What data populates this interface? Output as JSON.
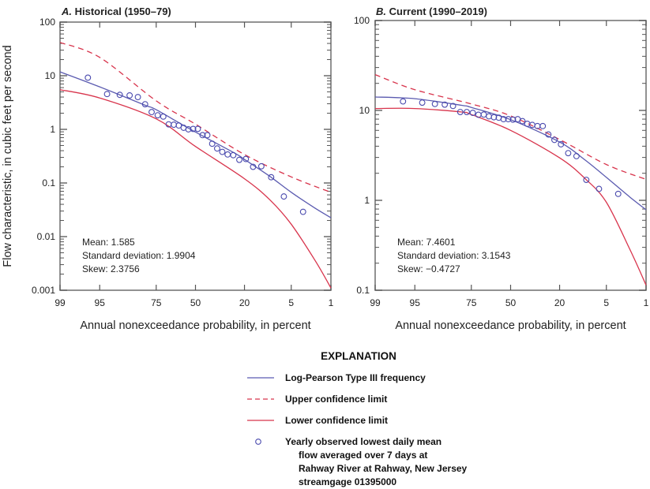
{
  "y_axis_label": "Flow characteristic, in cubic feet per second",
  "colors": {
    "frequency": "#5b5bb0",
    "confidence": "#d8344c",
    "observed": "#4a4aae",
    "axis": "#777777"
  },
  "legend": {
    "title": "EXPLANATION",
    "items": [
      {
        "label": "Log-Pearson Type III frequency",
        "style": "solid-blue-line"
      },
      {
        "label": "Upper confidence limit",
        "style": "dashed-red-line"
      },
      {
        "label": "Lower confidence limit",
        "style": "solid-red-line"
      },
      {
        "label_lines": [
          "Yearly observed lowest daily mean",
          "flow averaged over 7 days at",
          "Rahway River at Rahway, New Jersey",
          "streamgage 01395000"
        ],
        "style": "open-blue-circle"
      }
    ]
  },
  "chart_data": [
    {
      "type": "scatter",
      "panel_letter": "A.",
      "title": "Historical (1950–79)",
      "xlabel": "Annual nonexceedance probability, in percent",
      "x_scale": "normal-probability, reversed",
      "x_ticks": [
        99,
        95,
        75,
        50,
        20,
        5,
        1
      ],
      "x_tick_labels": [
        "99",
        "95",
        "75",
        "50",
        "20",
        "5",
        "1"
      ],
      "y_scale": "log",
      "ylim": [
        0.001,
        100
      ],
      "y_ticks": [
        100,
        10,
        1,
        0.1,
        0.01,
        0.001
      ],
      "y_tick_labels": [
        "100",
        "10",
        "1",
        "0.1",
        "0.01",
        "0.001"
      ],
      "grid": false,
      "stats": [
        "Mean: 1.585",
        "Standard deviation: 1.9904",
        "Skew: 2.3756"
      ],
      "observed": {
        "x": [
          96.77,
          93.55,
          90.32,
          87.1,
          83.87,
          80.65,
          77.42,
          74.19,
          70.97,
          67.74,
          64.52,
          61.29,
          58.06,
          54.84,
          51.61,
          48.39,
          45.16,
          41.94,
          38.71,
          35.48,
          32.26,
          29.03,
          25.81,
          22.58,
          19.35,
          16.13,
          12.9,
          9.68,
          6.45,
          3.23
        ],
        "y": [
          9.2,
          4.56,
          4.4,
          4.3,
          4.0,
          2.94,
          2.1,
          1.83,
          1.73,
          1.24,
          1.22,
          1.18,
          1.07,
          1.0,
          1.02,
          1.02,
          0.78,
          0.78,
          0.54,
          0.44,
          0.38,
          0.34,
          0.33,
          0.27,
          0.28,
          0.2,
          0.205,
          0.128,
          0.056,
          0.029
        ]
      },
      "frequency_curve": {
        "x": [
          99,
          95,
          90,
          80,
          75,
          50,
          25,
          20,
          10,
          5,
          2,
          1
        ],
        "y": [
          11.8,
          6.2,
          4.3,
          2.75,
          2.32,
          0.89,
          0.36,
          0.275,
          0.132,
          0.067,
          0.034,
          0.0225
        ]
      },
      "upper_confidence": {
        "x": [
          99,
          95,
          75,
          50,
          20,
          5,
          1
        ],
        "y": [
          41.7,
          22,
          3.4,
          1.25,
          0.34,
          0.13,
          0.067
        ]
      },
      "lower_confidence": {
        "x": [
          99,
          95,
          75,
          50,
          20,
          10,
          5,
          2,
          1
        ],
        "y": [
          5.5,
          3.85,
          1.57,
          0.48,
          0.12,
          0.048,
          0.017,
          0.0036,
          0.0011
        ]
      }
    },
    {
      "type": "scatter",
      "panel_letter": "B.",
      "title": "Current (1990–2019)",
      "xlabel": "Annual nonexceedance probability, in percent",
      "x_scale": "normal-probability, reversed",
      "x_ticks": [
        99,
        95,
        75,
        50,
        20,
        5,
        1
      ],
      "x_tick_labels": [
        "99",
        "95",
        "75",
        "50",
        "20",
        "5",
        "1"
      ],
      "y_scale": "log",
      "ylim": [
        0.1,
        100
      ],
      "y_ticks": [
        100,
        10,
        1,
        0.1
      ],
      "y_tick_labels": [
        "100",
        "10",
        "1",
        "0.1"
      ],
      "grid": false,
      "stats": [
        "Mean: 7.4601",
        "Standard deviation: 3.1543",
        "Skew: −0.4727"
      ],
      "observed": {
        "x": [
          96.77,
          93.55,
          90.32,
          87.1,
          83.87,
          80.65,
          77.42,
          74.19,
          70.97,
          67.74,
          64.52,
          61.29,
          58.06,
          54.84,
          51.61,
          48.39,
          45.16,
          41.94,
          38.71,
          35.48,
          32.26,
          29.03,
          25.81,
          22.58,
          19.35,
          16.13,
          12.9,
          9.68,
          6.45,
          3.23
        ],
        "y": [
          12.6,
          12.2,
          11.8,
          11.6,
          11.2,
          9.6,
          9.6,
          9.4,
          8.95,
          9.0,
          8.6,
          8.4,
          8.3,
          8.0,
          8.0,
          7.9,
          8.0,
          7.6,
          7.1,
          6.9,
          6.7,
          6.7,
          5.4,
          4.7,
          4.2,
          3.35,
          3.1,
          1.69,
          1.34,
          1.18
        ]
      },
      "frequency_curve": {
        "x": [
          99,
          95,
          80,
          75,
          50,
          20,
          10,
          5,
          2,
          1
        ],
        "y": [
          14.1,
          13.5,
          11.4,
          10.8,
          7.9,
          4.45,
          2.8,
          1.8,
          1.08,
          0.785
        ]
      },
      "upper_confidence": {
        "x": [
          99,
          95,
          75,
          50,
          20,
          5,
          1
        ],
        "y": [
          25,
          17,
          11.8,
          8.7,
          4.75,
          2.5,
          1.71
        ]
      },
      "lower_confidence": {
        "x": [
          99,
          95,
          80,
          75,
          50,
          20,
          10,
          5,
          2,
          1
        ],
        "y": [
          10.5,
          10.5,
          9.6,
          9.0,
          6.0,
          2.97,
          1.74,
          0.95,
          0.28,
          0.114
        ]
      }
    }
  ]
}
